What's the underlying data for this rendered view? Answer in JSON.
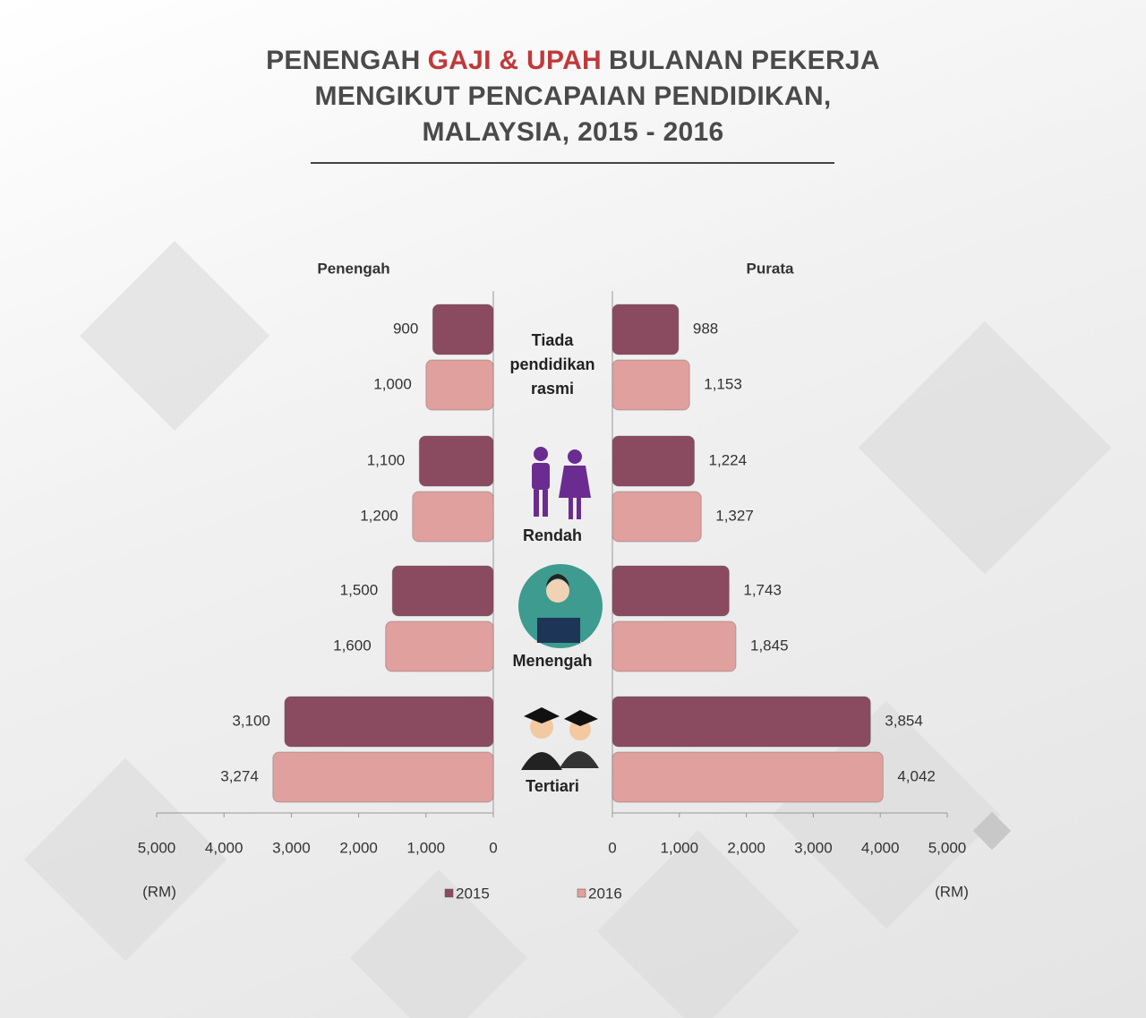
{
  "title": [
    "PENENGAH",
    "GAJI & UPAH",
    "BULANAN PEKERJA",
    "MENGIKUT PENCAPAIAN PENDIDIKAN,",
    "MALAYSIA, 2015 - 2016"
  ],
  "title_highlight_color": "#c0393b",
  "chart_data": {
    "type": "butterfly",
    "categories": [
      "Tiada pendidikan rasmi",
      "Rendah",
      "Menengah",
      "Tertiari"
    ],
    "panels": [
      {
        "title": "Penengah",
        "xlabel": "(RM)",
        "xlim": [
          0,
          5000
        ],
        "xticks": [
          0,
          {
            "value": 1000,
            "label": "1,000"
          },
          {
            "value": 2000,
            "label": "2,000"
          },
          {
            "value": 3000,
            "label": "3,000"
          },
          {
            "value": 4000,
            "label": "4,000"
          },
          {
            "value": 5000,
            "label": "5,000"
          }
        ]
      },
      {
        "title": "Purata",
        "xlabel": "(RM)",
        "xlim": [
          0,
          5000
        ],
        "xticks": [
          0,
          {
            "value": 1000,
            "label": "1,000"
          },
          {
            "value": 2000,
            "label": "2,000"
          },
          {
            "value": 3000,
            "label": "3,000"
          },
          {
            "value": 4000,
            "label": "4,000"
          },
          {
            "value": 5000,
            "label": "5,000"
          }
        ]
      }
    ],
    "series": [
      {
        "name": "2015",
        "color": "#8a4a5f",
        "values": [
          [
            900,
            1100,
            1500,
            3100
          ],
          [
            988,
            1224,
            1743,
            3854
          ]
        ],
        "value_labels": [
          [
            "900",
            "1,100",
            "1,500",
            "3,100"
          ],
          [
            "988",
            "1,224",
            "1,743",
            "3,854"
          ]
        ]
      },
      {
        "name": "2016",
        "color": "#e0a09e",
        "values": [
          [
            1000,
            1200,
            1600,
            3274
          ],
          [
            1153,
            1327,
            1845,
            4042
          ]
        ],
        "value_labels": [
          [
            "1,000",
            "1,200",
            "1,600",
            "3,274"
          ],
          [
            "1,153",
            "1,327",
            "1,845",
            "4,042"
          ]
        ]
      }
    ]
  }
}
